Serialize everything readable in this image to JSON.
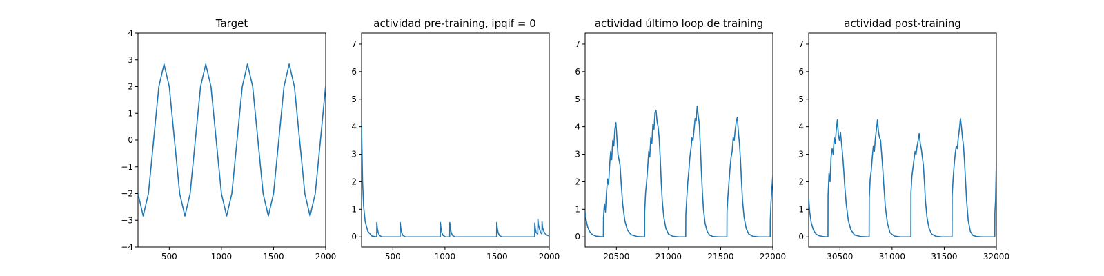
{
  "style": {
    "line_color": "#1f77b4",
    "axis_color": "#000000",
    "background": "#ffffff"
  },
  "chart_data": [
    {
      "type": "line",
      "title": "Target",
      "xlabel": "",
      "ylabel": "",
      "xlim": [
        200,
        2000
      ],
      "ylim": [
        -4,
        4
      ],
      "xticks": [
        500,
        1000,
        1500,
        2000
      ],
      "yticks": [
        -4,
        -3,
        -2,
        -1,
        0,
        1,
        2,
        3,
        4
      ],
      "xtick_labels": [
        "500",
        "1000",
        "1500",
        "2000"
      ],
      "ytick_labels": [
        "−4",
        "−3",
        "−2",
        "−1",
        "0",
        "1",
        "2",
        "3",
        "4"
      ],
      "grid": false,
      "series": [
        {
          "x": [
            200,
            250,
            300,
            350,
            400,
            450,
            500,
            550,
            600,
            650,
            700,
            750,
            800,
            850,
            900,
            950,
            1000,
            1050,
            1100,
            1150,
            1200,
            1250,
            1300,
            1350,
            1400,
            1450,
            1500,
            1550,
            1600,
            1650,
            1700,
            1750,
            1800,
            1850,
            1900,
            1950,
            2000
          ],
          "y": [
            -2.0,
            -2.84,
            -2.0,
            0.0,
            2.0,
            2.84,
            2.0,
            0.0,
            -2.0,
            -2.84,
            -2.0,
            0.0,
            2.0,
            2.84,
            2.0,
            0.0,
            -2.0,
            -2.84,
            -2.0,
            0.0,
            2.0,
            2.84,
            2.0,
            0.0,
            -2.0,
            -2.84,
            -2.0,
            0.0,
            2.0,
            2.84,
            2.0,
            0.0,
            -2.0,
            -2.84,
            -2.0,
            0.0,
            2.05
          ]
        }
      ]
    },
    {
      "type": "line",
      "title": "actividad pre-training, ipqif = 0",
      "xlabel": "",
      "ylabel": "",
      "xlim": [
        200,
        2000
      ],
      "ylim": [
        -0.37,
        7.4
      ],
      "xticks": [
        500,
        1000,
        1500,
        2000
      ],
      "yticks": [
        0,
        1,
        2,
        3,
        4,
        5,
        6,
        7
      ],
      "xtick_labels": [
        "500",
        "1000",
        "1500",
        "2000"
      ],
      "ytick_labels": [
        "0",
        "1",
        "2",
        "3",
        "4",
        "5",
        "6",
        "7"
      ],
      "grid": false,
      "series": [
        {
          "x": [
            200,
            205,
            210,
            220,
            235,
            260,
            300,
            345,
            346,
            352,
            360,
            372,
            395,
            570,
            571,
            577,
            585,
            597,
            620,
            955,
            956,
            962,
            970,
            982,
            1005,
            1045,
            1046,
            1052,
            1060,
            1072,
            1095,
            1495,
            1496,
            1502,
            1510,
            1522,
            1545,
            1860,
            1861,
            1866,
            1875,
            1890,
            1891,
            1896,
            1905,
            1918,
            1930,
            1931,
            1936,
            1945,
            1960,
            1980,
            2000
          ],
          "y": [
            4.05,
            3.0,
            2.0,
            1.1,
            0.55,
            0.2,
            0.03,
            0.0,
            0.52,
            0.3,
            0.15,
            0.05,
            0.0,
            0.0,
            0.52,
            0.3,
            0.15,
            0.05,
            0.0,
            0.0,
            0.52,
            0.3,
            0.15,
            0.05,
            0.0,
            0.0,
            0.52,
            0.3,
            0.15,
            0.05,
            0.0,
            0.0,
            0.52,
            0.3,
            0.15,
            0.05,
            0.0,
            0.0,
            0.5,
            0.3,
            0.15,
            0.1,
            0.65,
            0.45,
            0.3,
            0.15,
            0.1,
            0.55,
            0.35,
            0.22,
            0.12,
            0.06,
            0.03
          ]
        }
      ]
    },
    {
      "type": "line",
      "title": "actividad último loop de training",
      "xlabel": "",
      "ylabel": "",
      "xlim": [
        20200,
        22000
      ],
      "ylim": [
        -0.37,
        7.4
      ],
      "xticks": [
        20500,
        21000,
        21500,
        22000
      ],
      "yticks": [
        0,
        1,
        2,
        3,
        4,
        5,
        6,
        7
      ],
      "xtick_labels": [
        "20500",
        "21000",
        "21500",
        "22000"
      ],
      "ytick_labels": [
        "0",
        "1",
        "2",
        "3",
        "4",
        "5",
        "6",
        "7"
      ],
      "grid": false,
      "series": [
        {
          "x": [
            20200,
            20210,
            20225,
            20245,
            20270,
            20300,
            20340,
            20375,
            20376,
            20385,
            20395,
            20405,
            20415,
            20425,
            20435,
            20445,
            20455,
            20465,
            20475,
            20485,
            20495,
            20505,
            20515,
            20525,
            20535,
            20545,
            20560,
            20580,
            20605,
            20640,
            20700,
            20770,
            20771,
            20780,
            20790,
            20800,
            20810,
            20820,
            20830,
            20840,
            20850,
            20860,
            20870,
            20880,
            20890,
            20900,
            20910,
            20920,
            20930,
            20940,
            20955,
            20975,
            21000,
            21040,
            21100,
            21165,
            21166,
            21175,
            21185,
            21195,
            21205,
            21215,
            21225,
            21235,
            21245,
            21255,
            21265,
            21275,
            21285,
            21295,
            21305,
            21315,
            21325,
            21335,
            21350,
            21370,
            21395,
            21430,
            21490,
            21560,
            21561,
            21570,
            21580,
            21590,
            21600,
            21610,
            21620,
            21630,
            21640,
            21650,
            21660,
            21670,
            21680,
            21690,
            21700,
            21710,
            21725,
            21745,
            21770,
            21810,
            21870,
            21920,
            21975,
            21976,
            21982,
            21990,
            22000
          ],
          "y": [
            0.9,
            0.6,
            0.35,
            0.18,
            0.08,
            0.03,
            0.01,
            0.0,
            0.7,
            1.2,
            0.9,
            1.6,
            2.1,
            1.9,
            2.6,
            3.1,
            2.8,
            3.5,
            3.3,
            3.9,
            4.15,
            3.6,
            3.0,
            2.8,
            2.6,
            2.0,
            1.2,
            0.6,
            0.25,
            0.08,
            0.01,
            0.0,
            0.9,
            1.6,
            2.0,
            2.5,
            3.1,
            2.9,
            3.6,
            3.4,
            4.1,
            3.9,
            4.5,
            4.6,
            4.2,
            4.0,
            3.6,
            2.9,
            2.0,
            1.3,
            0.7,
            0.3,
            0.1,
            0.02,
            0.0,
            0.0,
            0.8,
            1.4,
            2.0,
            2.4,
            2.9,
            3.2,
            3.6,
            3.5,
            3.9,
            4.3,
            4.2,
            4.75,
            4.4,
            4.1,
            3.3,
            2.4,
            1.6,
            1.0,
            0.5,
            0.2,
            0.06,
            0.01,
            0.0,
            0.0,
            0.9,
            1.5,
            2.0,
            2.5,
            2.9,
            3.1,
            3.6,
            3.5,
            3.9,
            4.2,
            4.35,
            3.8,
            3.4,
            2.8,
            2.0,
            1.3,
            0.7,
            0.3,
            0.1,
            0.02,
            0.0,
            0.0,
            0.0,
            0.6,
            1.2,
            1.7,
            2.25
          ]
        }
      ]
    },
    {
      "type": "line",
      "title": "actividad post-training",
      "xlabel": "",
      "ylabel": "",
      "xlim": [
        30200,
        32000
      ],
      "ylim": [
        -0.37,
        7.4
      ],
      "xticks": [
        30500,
        31000,
        31500,
        32000
      ],
      "yticks": [
        0,
        1,
        2,
        3,
        4,
        5,
        6,
        7
      ],
      "xtick_labels": [
        "30500",
        "31000",
        "31500",
        "32000"
      ],
      "ytick_labels": [
        "0",
        "1",
        "2",
        "3",
        "4",
        "5",
        "6",
        "7"
      ],
      "grid": false,
      "series": [
        {
          "x": [
            30200,
            30210,
            30225,
            30245,
            30270,
            30300,
            30340,
            30385,
            30386,
            30395,
            30405,
            30415,
            30425,
            30435,
            30445,
            30455,
            30465,
            30475,
            30485,
            30495,
            30505,
            30515,
            30525,
            30535,
            30545,
            30560,
            30580,
            30605,
            30640,
            30700,
            30780,
            30781,
            30790,
            30800,
            30810,
            30820,
            30830,
            30840,
            30850,
            30860,
            30870,
            30880,
            30890,
            30900,
            30910,
            30920,
            30935,
            30955,
            30980,
            31020,
            31080,
            31180,
            31181,
            31190,
            31200,
            31210,
            31220,
            31230,
            31240,
            31250,
            31260,
            31270,
            31280,
            31290,
            31300,
            31310,
            31320,
            31335,
            31355,
            31380,
            31420,
            31480,
            31575,
            31576,
            31585,
            31595,
            31605,
            31615,
            31625,
            31635,
            31645,
            31655,
            31665,
            31675,
            31685,
            31695,
            31705,
            31715,
            31730,
            31750,
            31775,
            31815,
            31870,
            31930,
            31985,
            31986,
            31992,
            32000
          ],
          "y": [
            1.4,
            0.9,
            0.5,
            0.25,
            0.1,
            0.04,
            0.01,
            0.0,
            1.5,
            2.3,
            2.0,
            2.9,
            3.2,
            3.0,
            3.6,
            3.4,
            3.9,
            4.25,
            3.7,
            3.5,
            3.8,
            3.4,
            3.0,
            2.5,
            1.9,
            1.2,
            0.6,
            0.25,
            0.07,
            0.01,
            0.0,
            1.4,
            2.1,
            2.4,
            2.9,
            3.3,
            3.1,
            3.6,
            3.9,
            4.25,
            3.8,
            3.6,
            3.5,
            3.0,
            2.5,
            1.9,
            1.1,
            0.5,
            0.15,
            0.03,
            0.0,
            0.0,
            1.6,
            2.2,
            2.5,
            2.8,
            3.1,
            3.0,
            3.3,
            3.5,
            3.75,
            3.4,
            3.2,
            2.9,
            2.6,
            2.0,
            1.3,
            0.7,
            0.3,
            0.1,
            0.02,
            0.0,
            0.0,
            1.5,
            2.1,
            2.6,
            3.0,
            3.3,
            3.2,
            3.6,
            3.9,
            4.3,
            4.0,
            3.6,
            3.3,
            2.7,
            2.0,
            1.3,
            0.6,
            0.2,
            0.05,
            0.01,
            0.0,
            0.0,
            0.0,
            0.9,
            1.3,
            2.75
          ]
        }
      ]
    }
  ]
}
